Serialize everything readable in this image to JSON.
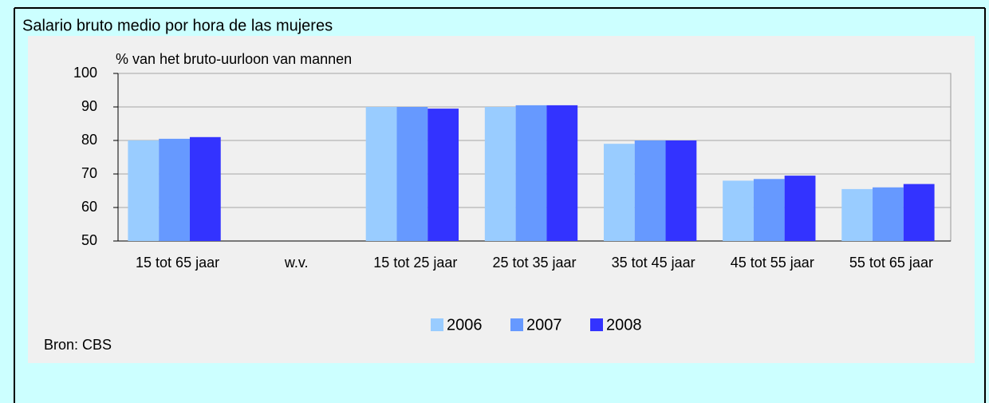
{
  "header": {
    "title": "Salario bruto medio por hora de las mujeres"
  },
  "chart_data": {
    "type": "bar",
    "y_label": "% van het bruto-uurloon van mannen",
    "categories": [
      "15 tot 65 jaar",
      "w.v.",
      "15 tot 25 jaar",
      "25 tot 35 jaar",
      "35 tot 45 jaar",
      "45 tot 55 jaar",
      "55 tot 65 jaar"
    ],
    "series": [
      {
        "name": "2006",
        "color": "#99ccff",
        "values": [
          80,
          null,
          90,
          90,
          79,
          68,
          65.5
        ]
      },
      {
        "name": "2007",
        "color": "#6699ff",
        "values": [
          80.5,
          null,
          90,
          90.5,
          80,
          68.5,
          66
        ]
      },
      {
        "name": "2008",
        "color": "#3333ff",
        "values": [
          81,
          null,
          89.5,
          90.5,
          80,
          69.5,
          67
        ]
      }
    ],
    "ylim": [
      50,
      100
    ],
    "yticks": [
      50,
      60,
      70,
      80,
      90,
      100
    ],
    "grid": true,
    "legend": "bottom",
    "source": "Bron: CBS"
  }
}
